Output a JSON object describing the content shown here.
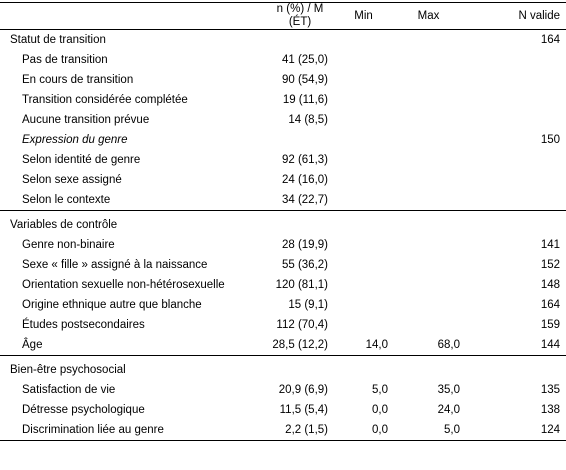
{
  "header": {
    "columns": [
      "n (%) / M (ÉT)",
      "Min",
      "Max",
      "N valide"
    ]
  },
  "sections": [
    {
      "title": "Statut de transition",
      "n": 164,
      "rows": [
        {
          "label": "Pas de transition",
          "value": "41 (25,0)"
        },
        {
          "label": "En cours de transition",
          "value": "90 (54,9)"
        },
        {
          "label": "Transition considérée complétée",
          "value": "19 (11,6)"
        },
        {
          "label": "Aucune transition prévue",
          "value": "14 (8,5)"
        },
        {
          "label": "Expression du genre",
          "italic": true,
          "n": 150
        },
        {
          "label": "Selon identité de genre",
          "value": "92 (61,3)"
        },
        {
          "label": "Selon sexe assigné",
          "value": "24 (16,0)"
        },
        {
          "label": "Selon le contexte",
          "value": "34 (22,7)"
        }
      ]
    },
    {
      "title": "Variables de contrôle",
      "rows": [
        {
          "label": "Genre non-binaire",
          "value": "28 (19,9)",
          "n": 141
        },
        {
          "label": "Sexe « fille » assigné à la naissance",
          "value": "55 (36,2)",
          "n": 152
        },
        {
          "label": "Orientation sexuelle non-hétérosexuelle",
          "value": "120 (81,1)",
          "n": 148
        },
        {
          "label": "Origine ethnique autre que blanche",
          "value": "15 (9,1)",
          "n": 164
        },
        {
          "label": "Études postsecondaires",
          "value": "112 (70,4)",
          "n": 159
        },
        {
          "label": "Âge",
          "value": "28,5 (12,2)",
          "min": "14,0",
          "max": "68,0",
          "n": 144
        }
      ]
    },
    {
      "title": "Bien-être psychosocial",
      "rows": [
        {
          "label": "Satisfaction de vie",
          "value": "20,9 (6,9)",
          "min": "5,0",
          "max": "35,0",
          "n": 135
        },
        {
          "label": "Détresse psychologique",
          "value": "11,5 (5,4)",
          "min": "0,0",
          "max": "24,0",
          "n": 138
        },
        {
          "label": "Discrimination liée au genre",
          "value": "2,2 (1,5)",
          "min": "0,0",
          "max": "5,0",
          "n": 124
        }
      ]
    }
  ]
}
